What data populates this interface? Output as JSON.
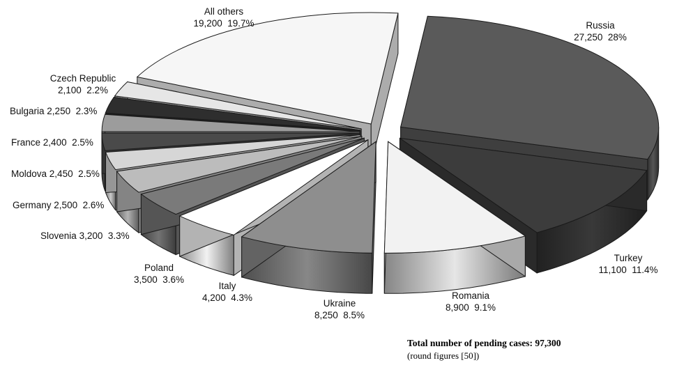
{
  "chart_data": {
    "type": "pie",
    "style": "3d-exploded",
    "slices": [
      {
        "label": "Russia",
        "value": 27250,
        "value_text": "27,250",
        "percent": "28%",
        "color": "#5a5a5a"
      },
      {
        "label": "Turkey",
        "value": 11100,
        "value_text": "11,100",
        "percent": "11.4%",
        "color": "#3c3c3c"
      },
      {
        "label": "Romania",
        "value": 8900,
        "value_text": "8,900",
        "percent": "9.1%",
        "color": "#f2f2f2"
      },
      {
        "label": "Ukraine",
        "value": 8250,
        "value_text": "8,250",
        "percent": "8.5%",
        "color": "#8e8e8e"
      },
      {
        "label": "Italy",
        "value": 4200,
        "value_text": "4,200",
        "percent": "4.3%",
        "color": "#ffffff"
      },
      {
        "label": "Poland",
        "value": 3500,
        "value_text": "3,500",
        "percent": "3.6%",
        "color": "#7a7a7a"
      },
      {
        "label": "Slovenia",
        "value": 3200,
        "value_text": "3,200",
        "percent": "3.3%",
        "color": "#bcbcbc"
      },
      {
        "label": "Germany",
        "value": 2500,
        "value_text": "2,500",
        "percent": "2.6%",
        "color": "#d6d6d6"
      },
      {
        "label": "Moldova",
        "value": 2450,
        "value_text": "2,450",
        "percent": "2.5%",
        "color": "#4a4a4a"
      },
      {
        "label": "France",
        "value": 2400,
        "value_text": "2,400",
        "percent": "2.5%",
        "color": "#9c9c9c"
      },
      {
        "label": "Bulgaria",
        "value": 2250,
        "value_text": "2,250",
        "percent": "2.3%",
        "color": "#2e2e2e"
      },
      {
        "label": "Czech Republic",
        "value": 2100,
        "value_text": "2,100",
        "percent": "2.2%",
        "color": "#e6e6e6"
      },
      {
        "label": "All others",
        "value": 19200,
        "value_text": "19,200",
        "percent": "19.7%",
        "color": "#f6f6f6"
      }
    ],
    "total_label": "Total number of pending cases: 97,300",
    "total_note": "(round figures [50])"
  }
}
